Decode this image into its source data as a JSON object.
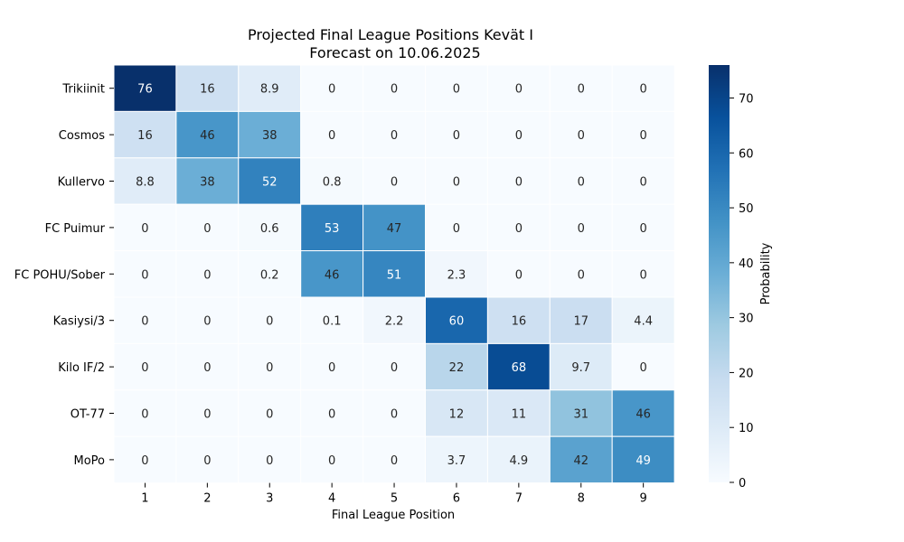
{
  "chart_data": {
    "type": "heatmap",
    "title_line1": "Projected Final League Positions Kevät I",
    "title_line2": "Forecast on 10.06.2025",
    "xlabel": "Final League Position",
    "ylabel": "",
    "x": [
      "1",
      "2",
      "3",
      "4",
      "5",
      "6",
      "7",
      "8",
      "9"
    ],
    "y": [
      "Trikiinit",
      "Cosmos",
      "Kullervo",
      "FC Puimur",
      "FC POHU/Sober",
      "Kasiysi/3",
      "Kilo IF/2",
      "OT-77",
      "MoPo"
    ],
    "values": [
      [
        76,
        16,
        8.9,
        0,
        0,
        0,
        0,
        0,
        0
      ],
      [
        16,
        46,
        38,
        0,
        0,
        0,
        0,
        0,
        0
      ],
      [
        8.8,
        38,
        52,
        0.8,
        0,
        0,
        0,
        0,
        0
      ],
      [
        0,
        0,
        0.6,
        53,
        47,
        0,
        0,
        0,
        0
      ],
      [
        0,
        0,
        0.2,
        46,
        51,
        2.3,
        0,
        0,
        0
      ],
      [
        0,
        0,
        0,
        0.1,
        2.2,
        60,
        16,
        17,
        4.4
      ],
      [
        0,
        0,
        0,
        0,
        0,
        22,
        68,
        9.7,
        0
      ],
      [
        0,
        0,
        0,
        0,
        0,
        12,
        11,
        31,
        46
      ],
      [
        0,
        0,
        0,
        0,
        0,
        3.7,
        4.9,
        42,
        49
      ]
    ],
    "colorbar": {
      "label": "Probability",
      "range": [
        0,
        76
      ],
      "ticks": [
        0,
        10,
        20,
        30,
        40,
        50,
        60,
        70
      ],
      "colormap": "Blues",
      "colors": [
        "#f7fbff",
        "#deebf7",
        "#c6dbef",
        "#9ecae1",
        "#6baed6",
        "#4292c6",
        "#2171b5",
        "#08519c",
        "#08306b"
      ]
    },
    "grid": false
  }
}
